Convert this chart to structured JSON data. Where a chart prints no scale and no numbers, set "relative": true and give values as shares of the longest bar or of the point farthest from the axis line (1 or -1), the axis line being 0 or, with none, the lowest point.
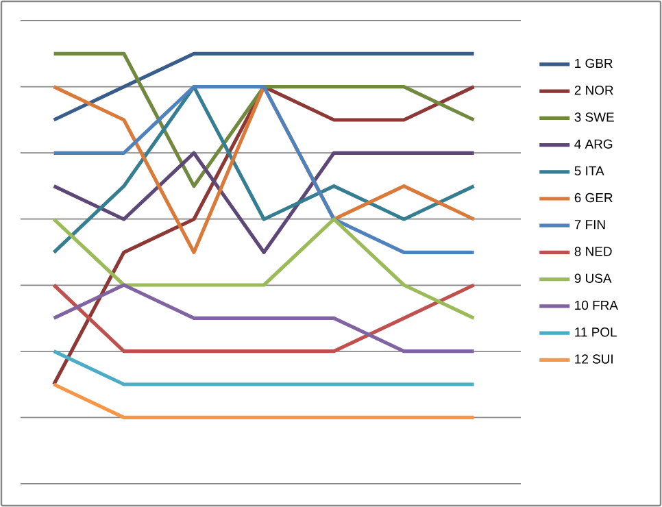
{
  "chart_data": {
    "type": "line",
    "relative": true,
    "categories": [
      null,
      null,
      null,
      null,
      null,
      null,
      null
    ],
    "grid": "y",
    "legend": "right",
    "marker": "none",
    "line_style": "solid",
    "series": [
      {
        "name": "1 GBR",
        "color": "#385d8a",
        "values": [
          0.846,
          0.923,
          1,
          1,
          1,
          1,
          1
        ]
      },
      {
        "name": "2 NOR",
        "color": "#8c3836",
        "values": [
          0.231,
          0.538,
          0.615,
          0.923,
          0.846,
          0.846,
          0.923
        ]
      },
      {
        "name": "3 SWE",
        "color": "#71893f",
        "values": [
          1,
          1,
          0.692,
          0.923,
          0.923,
          0.923,
          0.846
        ]
      },
      {
        "name": "4 ARG",
        "color": "#5c4776",
        "values": [
          0.692,
          0.615,
          0.769,
          0.538,
          0.769,
          0.769,
          0.769
        ]
      },
      {
        "name": "5 ITA",
        "color": "#357d91",
        "values": [
          0.538,
          0.692,
          0.923,
          0.615,
          0.692,
          0.615,
          0.692
        ]
      },
      {
        "name": "6 GER",
        "color": "#d9793a",
        "values": [
          0.923,
          0.846,
          0.538,
          0.923,
          0.615,
          0.692,
          0.615
        ]
      },
      {
        "name": "7 FIN",
        "color": "#4f81bd",
        "values": [
          0.769,
          0.769,
          0.923,
          0.923,
          0.615,
          0.538,
          0.538
        ]
      },
      {
        "name": "8 NED",
        "color": "#c0504d",
        "values": [
          0.462,
          0.308,
          0.308,
          0.308,
          0.308,
          0.385,
          0.462
        ]
      },
      {
        "name": "9 USA",
        "color": "#9bbb59",
        "values": [
          0.615,
          0.462,
          0.462,
          0.462,
          0.615,
          0.462,
          0.385
        ]
      },
      {
        "name": "10 FRA",
        "color": "#8064a2",
        "values": [
          0.385,
          0.462,
          0.385,
          0.385,
          0.385,
          0.308,
          0.308
        ]
      },
      {
        "name": "11 POL",
        "color": "#4bacc6",
        "values": [
          0.308,
          0.231,
          0.231,
          0.231,
          0.231,
          0.231,
          0.231
        ]
      },
      {
        "name": "12 SUI",
        "color": "#f79646",
        "values": [
          0.231,
          0.154,
          0.154,
          0.154,
          0.154,
          0.154,
          0.154
        ]
      }
    ]
  }
}
